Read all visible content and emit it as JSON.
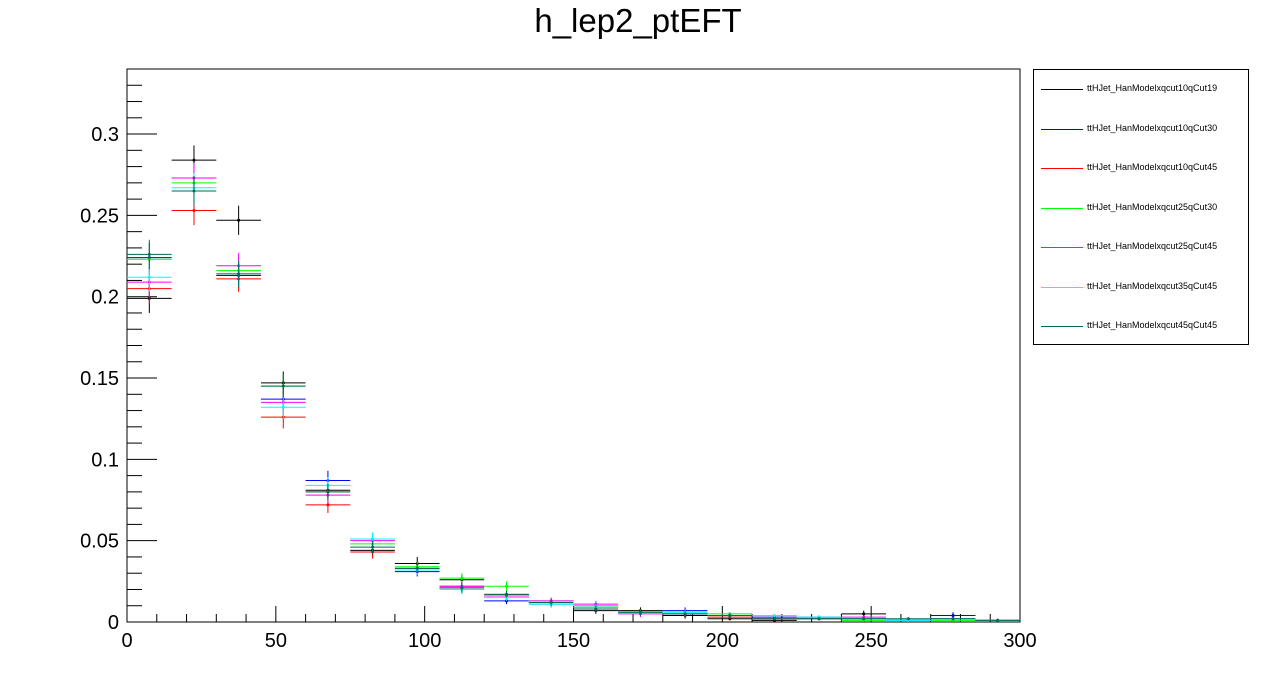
{
  "chart_data": {
    "type": "line",
    "title": "h_lep2_ptEFT",
    "xlim": [
      0,
      300
    ],
    "ylim": [
      0,
      0.34
    ],
    "bin_width": 15,
    "x_ticks": [
      "0",
      "50",
      "100",
      "150",
      "200",
      "250",
      "300"
    ],
    "y_ticks": [
      "0",
      "0.05",
      "0.1",
      "0.15",
      "0.2",
      "0.25",
      "0.3"
    ],
    "x_tick_values": [
      0,
      50,
      100,
      150,
      200,
      250,
      300
    ],
    "y_tick_values": [
      0,
      0.05,
      0.1,
      0.15,
      0.2,
      0.25,
      0.3
    ],
    "x": [
      7.5,
      22.5,
      37.5,
      52.5,
      67.5,
      82.5,
      97.5,
      112.5,
      127.5,
      142.5,
      157.5,
      172.5,
      187.5,
      202.5,
      217.5,
      232.5,
      247.5,
      262.5,
      277.5,
      292.5
    ],
    "legend_position": "right, outside plot",
    "grid": false,
    "series": [
      {
        "name": "ttHJet_HanModelxqcut10qCut19",
        "color": "#000000",
        "values": [
          0.199,
          0.284,
          0.247,
          0.147,
          0.081,
          0.044,
          0.036,
          0.026,
          0.016,
          0.012,
          0.007,
          0.007,
          0.004,
          0.002,
          0.001,
          0.002,
          0.005,
          0.001,
          0.004,
          0.001
        ],
        "errors": [
          0.009,
          0.009,
          0.009,
          0.007,
          0.005,
          0.004,
          0.004,
          0.003,
          0.003,
          0.002,
          0.002,
          0.002,
          0.002,
          0.001,
          0.001,
          0.001,
          0.002,
          0.001,
          0.002,
          0.001
        ]
      },
      {
        "name": "ttHJet_HanModelxqcut10qCut30",
        "color": "#0000ff",
        "values": [
          0.224,
          0.273,
          0.213,
          0.137,
          0.087,
          0.051,
          0.031,
          0.021,
          0.013,
          0.011,
          0.009,
          0.006,
          0.007,
          0.004,
          0.003,
          0.003,
          0.002,
          0.001,
          0.004,
          0.001
        ],
        "errors": [
          0.009,
          0.009,
          0.008,
          0.007,
          0.006,
          0.004,
          0.003,
          0.003,
          0.002,
          0.002,
          0.002,
          0.002,
          0.002,
          0.001,
          0.001,
          0.001,
          0.001,
          0.001,
          0.002,
          0.001
        ]
      },
      {
        "name": "ttHJet_HanModelxqcut10qCut45",
        "color": "#ff0000",
        "values": [
          0.205,
          0.253,
          0.211,
          0.126,
          0.072,
          0.043,
          0.033,
          0.022,
          0.017,
          0.012,
          0.008,
          0.006,
          0.005,
          0.003,
          0.002,
          0.003,
          0.002,
          0.001,
          0.002,
          0.001
        ],
        "errors": [
          0.009,
          0.009,
          0.008,
          0.007,
          0.005,
          0.004,
          0.003,
          0.003,
          0.002,
          0.002,
          0.002,
          0.002,
          0.002,
          0.001,
          0.001,
          0.001,
          0.001,
          0.001,
          0.001,
          0.001
        ]
      },
      {
        "name": "ttHJet_HanModelxqcut25qCut30",
        "color": "#00ff00",
        "values": [
          0.223,
          0.27,
          0.216,
          0.145,
          0.08,
          0.048,
          0.034,
          0.027,
          0.022,
          0.013,
          0.01,
          0.006,
          0.006,
          0.005,
          0.002,
          0.003,
          0.001,
          0.001,
          0.001,
          0.001
        ],
        "errors": [
          0.009,
          0.009,
          0.008,
          0.007,
          0.005,
          0.004,
          0.003,
          0.003,
          0.003,
          0.002,
          0.002,
          0.002,
          0.002,
          0.001,
          0.001,
          0.001,
          0.001,
          0.001,
          0.001,
          0.001
        ]
      },
      {
        "name": "ttHJet_HanModelxqcut25qCut45",
        "color": "#ff00ff",
        "values": [
          0.209,
          0.273,
          0.219,
          0.135,
          0.078,
          0.05,
          0.032,
          0.022,
          0.016,
          0.013,
          0.011,
          0.005,
          0.005,
          0.004,
          0.002,
          0.003,
          0.003,
          0.001,
          0.002,
          0.001
        ],
        "errors": [
          0.009,
          0.009,
          0.008,
          0.007,
          0.005,
          0.004,
          0.003,
          0.003,
          0.002,
          0.002,
          0.002,
          0.002,
          0.002,
          0.001,
          0.001,
          0.001,
          0.001,
          0.001,
          0.001,
          0.001
        ]
      },
      {
        "name": "ttHJet_HanModelxqcut35qCut45",
        "color": "#00ffff",
        "values": [
          0.212,
          0.267,
          0.214,
          0.132,
          0.084,
          0.051,
          0.032,
          0.02,
          0.015,
          0.011,
          0.009,
          0.006,
          0.006,
          0.004,
          0.004,
          0.003,
          0.002,
          0.001,
          0.002,
          0.001
        ],
        "errors": [
          0.009,
          0.009,
          0.008,
          0.007,
          0.005,
          0.004,
          0.003,
          0.003,
          0.002,
          0.002,
          0.002,
          0.002,
          0.002,
          0.001,
          0.001,
          0.001,
          0.001,
          0.001,
          0.001,
          0.001
        ]
      },
      {
        "name": "ttHJet_HanModelxqcut45qCut45",
        "color": "#006a55",
        "values": [
          0.226,
          0.265,
          0.214,
          0.145,
          0.08,
          0.046,
          0.033,
          0.021,
          0.017,
          0.012,
          0.008,
          0.006,
          0.005,
          0.004,
          0.002,
          0.002,
          0.002,
          0.002,
          0.002,
          0.001
        ],
        "errors": [
          0.009,
          0.009,
          0.008,
          0.007,
          0.005,
          0.004,
          0.003,
          0.003,
          0.002,
          0.002,
          0.002,
          0.002,
          0.002,
          0.001,
          0.001,
          0.001,
          0.001,
          0.001,
          0.001,
          0.001
        ]
      }
    ]
  }
}
